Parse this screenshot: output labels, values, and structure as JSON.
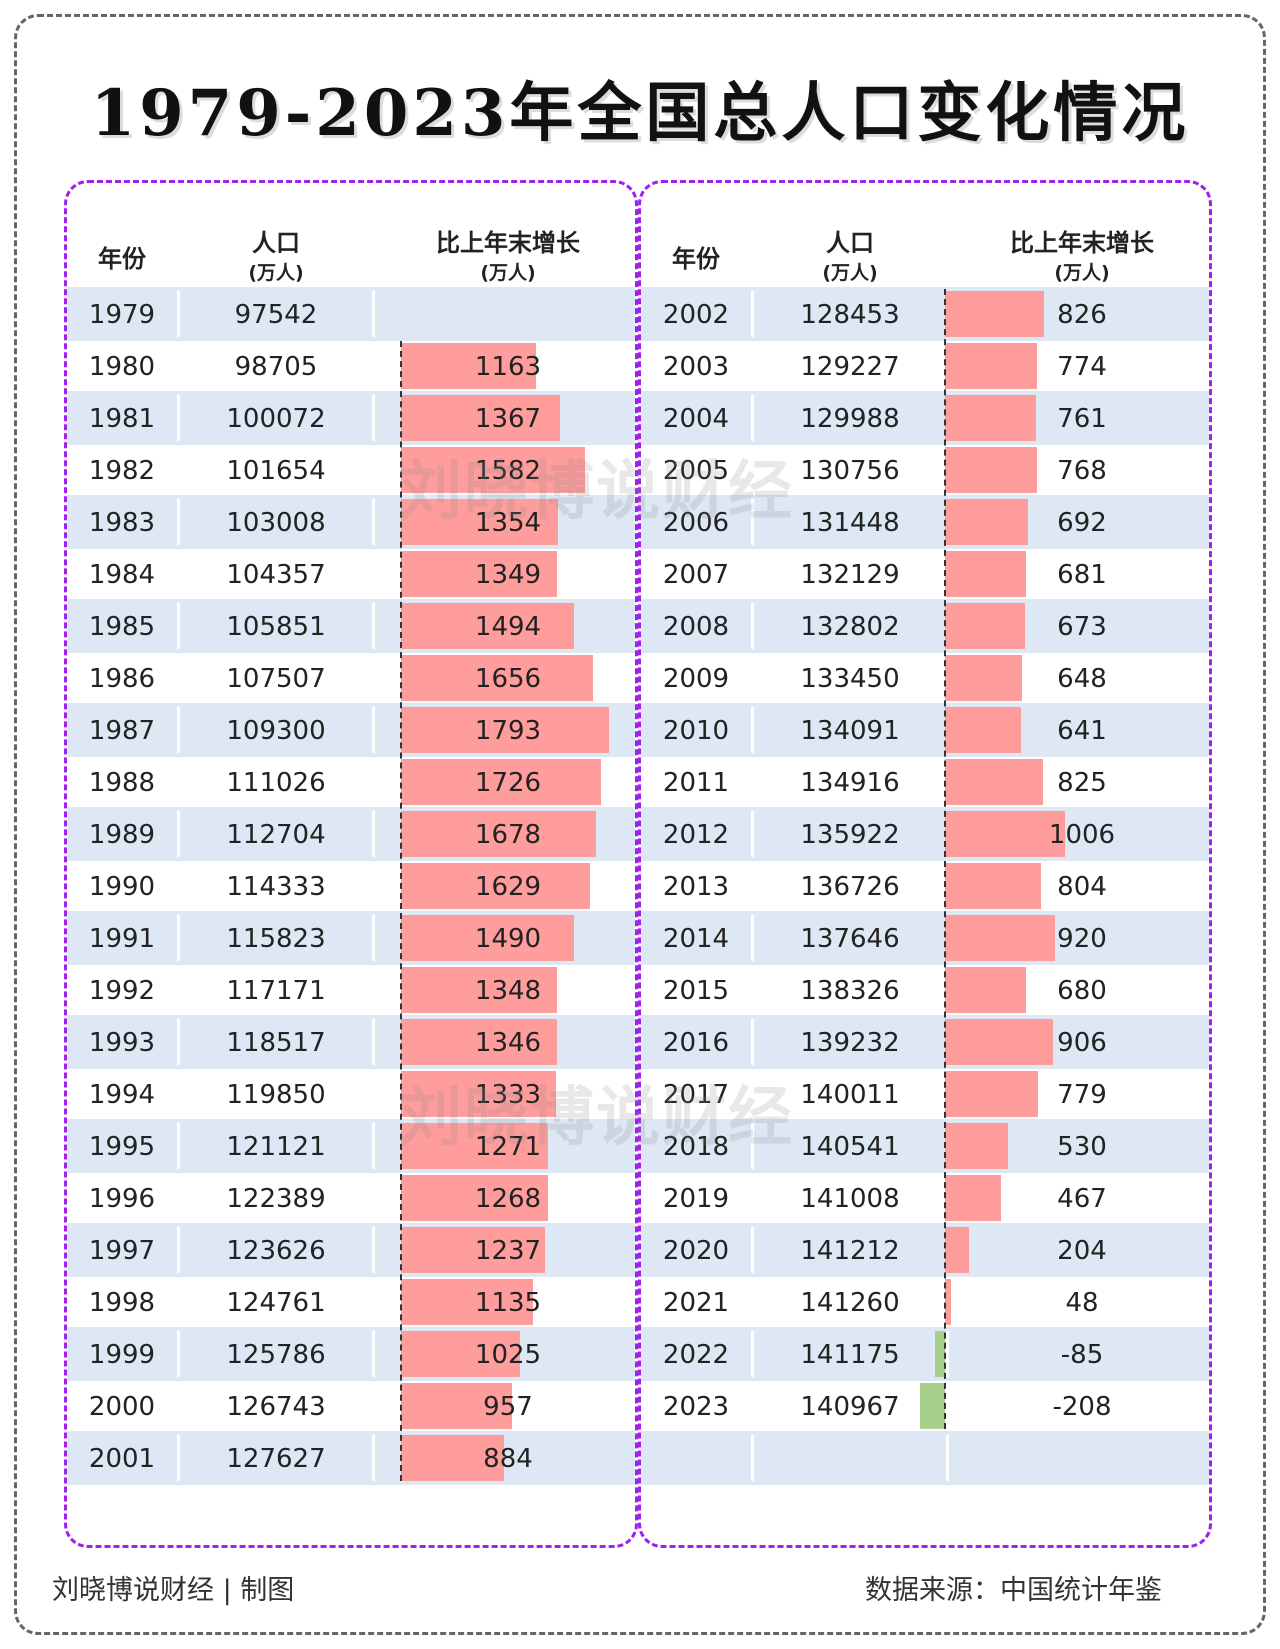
{
  "title": "1979-2023年全国总人口变化情况",
  "headers": {
    "year": "年份",
    "population": "人口",
    "population_unit": "(万人)",
    "increase": "比上年末增长",
    "increase_unit": "(万人)"
  },
  "watermark": "刘晓博说财经",
  "footer": {
    "left": "刘晓博说财经 | 制图",
    "right": "数据来源：中国统计年鉴"
  },
  "colors": {
    "frame": "#666666",
    "panel_border": "#a020f0",
    "row_shade": "#dde8f4",
    "bar_positive": "#ff9c9c",
    "bar_negative": "#a8d08d"
  },
  "chart_data": {
    "type": "table",
    "title": "1979-2023年全国总人口变化情况",
    "columns": [
      "年份",
      "人口(万人)",
      "比上年末增长(万人)"
    ],
    "rows": [
      {
        "year": "1979",
        "population": "97542",
        "increase": null
      },
      {
        "year": "1980",
        "population": "98705",
        "increase": 1163
      },
      {
        "year": "1981",
        "population": "100072",
        "increase": 1367
      },
      {
        "year": "1982",
        "population": "101654",
        "increase": 1582
      },
      {
        "year": "1983",
        "population": "103008",
        "increase": 1354
      },
      {
        "year": "1984",
        "population": "104357",
        "increase": 1349
      },
      {
        "year": "1985",
        "population": "105851",
        "increase": 1494
      },
      {
        "year": "1986",
        "population": "107507",
        "increase": 1656
      },
      {
        "year": "1987",
        "population": "109300",
        "increase": 1793
      },
      {
        "year": "1988",
        "population": "111026",
        "increase": 1726
      },
      {
        "year": "1989",
        "population": "112704",
        "increase": 1678
      },
      {
        "year": "1990",
        "population": "114333",
        "increase": 1629
      },
      {
        "year": "1991",
        "population": "115823",
        "increase": 1490
      },
      {
        "year": "1992",
        "population": "117171",
        "increase": 1348
      },
      {
        "year": "1993",
        "population": "118517",
        "increase": 1346
      },
      {
        "year": "1994",
        "population": "119850",
        "increase": 1333
      },
      {
        "year": "1995",
        "population": "121121",
        "increase": 1271
      },
      {
        "year": "1996",
        "population": "122389",
        "increase": 1268
      },
      {
        "year": "1997",
        "population": "123626",
        "increase": 1237
      },
      {
        "year": "1998",
        "population": "124761",
        "increase": 1135
      },
      {
        "year": "1999",
        "population": "125786",
        "increase": 1025
      },
      {
        "year": "2000",
        "population": "126743",
        "increase": 957
      },
      {
        "year": "2001",
        "population": "127627",
        "increase": 884
      },
      {
        "year": "2002",
        "population": "128453",
        "increase": 826
      },
      {
        "year": "2003",
        "population": "129227",
        "increase": 774
      },
      {
        "year": "2004",
        "population": "129988",
        "increase": 761
      },
      {
        "year": "2005",
        "population": "130756",
        "increase": 768
      },
      {
        "year": "2006",
        "population": "131448",
        "increase": 692
      },
      {
        "year": "2007",
        "population": "132129",
        "increase": 681
      },
      {
        "year": "2008",
        "population": "132802",
        "increase": 673
      },
      {
        "year": "2009",
        "population": "133450",
        "increase": 648
      },
      {
        "year": "2010",
        "population": "134091",
        "increase": 641
      },
      {
        "year": "2011",
        "population": "134916",
        "increase": 825
      },
      {
        "year": "2012",
        "population": "135922",
        "increase": 1006
      },
      {
        "year": "2013",
        "population": "136726",
        "increase": 804
      },
      {
        "year": "2014",
        "population": "137646",
        "increase": 920
      },
      {
        "year": "2015",
        "population": "138326",
        "increase": 680
      },
      {
        "year": "2016",
        "population": "139232",
        "increase": 906
      },
      {
        "year": "2017",
        "population": "140011",
        "increase": 779
      },
      {
        "year": "2018",
        "population": "140541",
        "increase": 530
      },
      {
        "year": "2019",
        "population": "141008",
        "increase": 467
      },
      {
        "year": "2020",
        "population": "141212",
        "increase": 204
      },
      {
        "year": "2021",
        "population": "141260",
        "increase": 48
      },
      {
        "year": "2022",
        "population": "141175",
        "increase": -85
      },
      {
        "year": "2023",
        "population": "140967",
        "increase": -208
      }
    ]
  }
}
